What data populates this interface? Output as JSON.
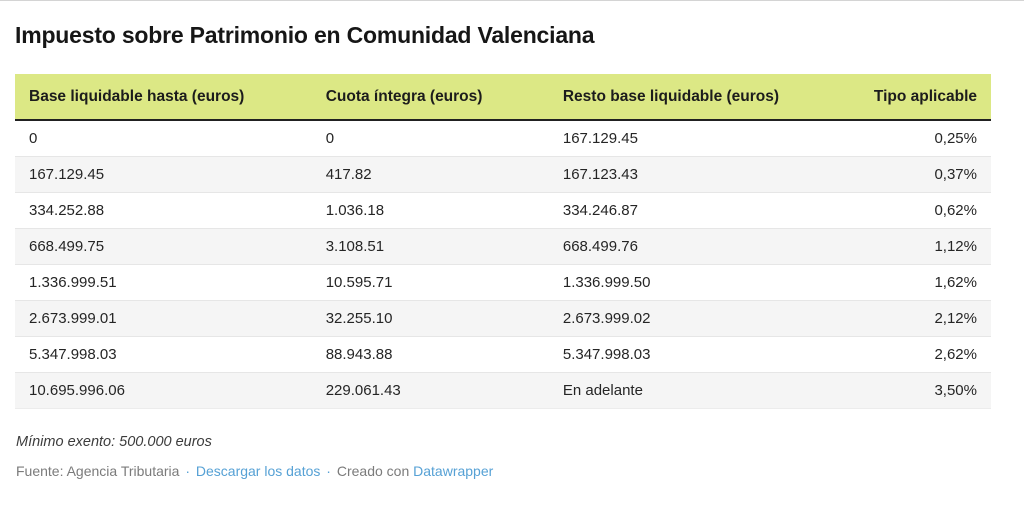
{
  "chart_data": {
    "type": "table",
    "title": "Impuesto sobre Patrimonio en Comunidad Valenciana",
    "columns": [
      "Base liquidable hasta (euros)",
      "Cuota íntegra (euros)",
      "Resto base liquidable (euros)",
      "Tipo aplicable"
    ],
    "rows": [
      [
        "0",
        "0",
        "167.129.45",
        "0,25%"
      ],
      [
        "167.129.45",
        "417.82",
        "167.123.43",
        "0,37%"
      ],
      [
        "334.252.88",
        "1.036.18",
        "334.246.87",
        "0,62%"
      ],
      [
        "668.499.75",
        "3.108.51",
        "668.499.76",
        "1,12%"
      ],
      [
        "1.336.999.51",
        "10.595.71",
        "1.336.999.50",
        "1,62%"
      ],
      [
        "2.673.999.01",
        "32.255.10",
        "2.673.999.02",
        "2,12%"
      ],
      [
        "5.347.998.03",
        "88.943.88",
        "5.347.998.03",
        "2,62%"
      ],
      [
        "10.695.996.06",
        "229.061.43",
        "En adelante",
        "3,50%"
      ]
    ],
    "note": "Mínimo exento: 500.000 euros"
  },
  "footer": {
    "source_label": "Fuente: Agencia Tributaria",
    "separator": "·",
    "download_link": "Descargar los datos",
    "created_with": "Creado con",
    "datawrapper_link": "Datawrapper"
  },
  "colors": {
    "header_bg": "#dce885",
    "header_border": "#212121",
    "stripe": "#f5f5f5",
    "link": "#56a1d5"
  }
}
